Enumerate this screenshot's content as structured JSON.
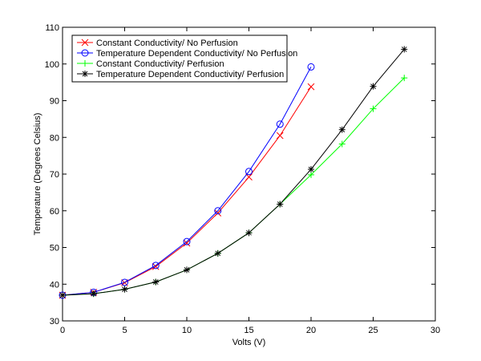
{
  "chart_data": {
    "type": "line",
    "xlabel": "Volts (V)",
    "ylabel": "Temperature (Degrees Celsius)",
    "xlim": [
      0,
      30
    ],
    "ylim": [
      30,
      110
    ],
    "xticks": [
      "0",
      "5",
      "10",
      "15",
      "20",
      "25",
      "30"
    ],
    "yticks": [
      "30",
      "40",
      "50",
      "60",
      "70",
      "80",
      "90",
      "100",
      "110"
    ],
    "grid": false,
    "legend_position": "top-left",
    "series": [
      {
        "name": "Constant Conductivity/ No Perfusion",
        "color": "#ff0000",
        "marker": "x",
        "x": [
          0,
          2.5,
          5,
          7.5,
          10,
          12.5,
          15,
          17.5,
          20
        ],
        "y": [
          37,
          37.8,
          40.4,
          44.8,
          51.2,
          59.4,
          69.2,
          80.5,
          93.8
        ]
      },
      {
        "name": "Temperature Dependent Conductivity/ No Perfusion",
        "color": "#0000ff",
        "marker": "o",
        "x": [
          0,
          2.5,
          5,
          7.5,
          10,
          12.5,
          15,
          17.5,
          20
        ],
        "y": [
          37,
          37.8,
          40.5,
          45.1,
          51.6,
          60,
          70.7,
          83.6,
          99.2
        ]
      },
      {
        "name": "Constant Conductivity/ Perfusion",
        "color": "#00ff00",
        "marker": "+",
        "x": [
          0,
          2.5,
          5,
          7.5,
          10,
          12.5,
          15,
          17.5,
          20,
          22.5,
          25,
          27.5
        ],
        "y": [
          37,
          37.4,
          38.6,
          40.6,
          43.9,
          48.4,
          54,
          61.8,
          69.8,
          78.2,
          87.8,
          96.2
        ]
      },
      {
        "name": "Temperature Dependent Conductivity/ Perfusion",
        "color": "#000000",
        "marker": "*",
        "x": [
          0,
          2.5,
          5,
          7.5,
          10,
          12.5,
          15,
          17.5,
          20,
          22.5,
          25,
          27.5
        ],
        "y": [
          37,
          37.4,
          38.6,
          40.6,
          43.9,
          48.4,
          54,
          61.8,
          71.3,
          82.1,
          93.9,
          104
        ]
      }
    ]
  }
}
